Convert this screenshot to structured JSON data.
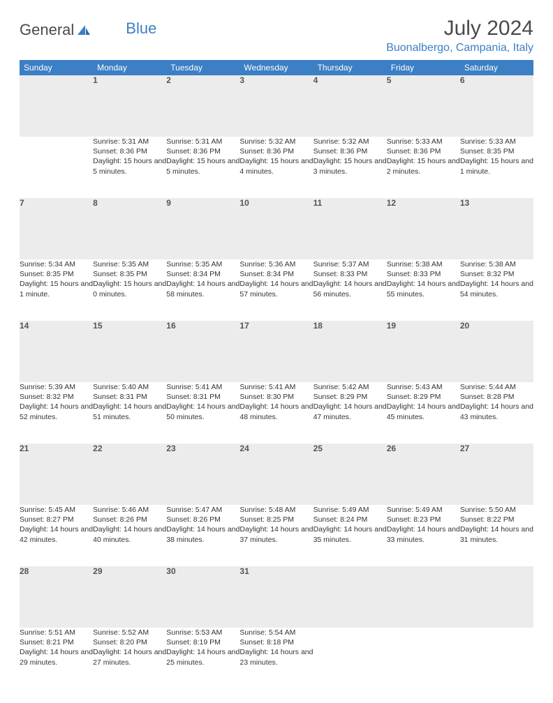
{
  "logo": {
    "text1": "General",
    "text2": "Blue"
  },
  "title": "July 2024",
  "location": "Buonalbergo, Campania, Italy",
  "colors": {
    "header_bg": "#3b7fc4",
    "header_text": "#ffffff",
    "daynum_bg": "#ececec",
    "border": "#3b7fc4",
    "title_text": "#4a4a4a",
    "location_text": "#3b7fc4"
  },
  "day_headers": [
    "Sunday",
    "Monday",
    "Tuesday",
    "Wednesday",
    "Thursday",
    "Friday",
    "Saturday"
  ],
  "weeks": [
    [
      null,
      {
        "n": "1",
        "sr": "5:31 AM",
        "ss": "8:36 PM",
        "dl": "15 hours and 5 minutes."
      },
      {
        "n": "2",
        "sr": "5:31 AM",
        "ss": "8:36 PM",
        "dl": "15 hours and 5 minutes."
      },
      {
        "n": "3",
        "sr": "5:32 AM",
        "ss": "8:36 PM",
        "dl": "15 hours and 4 minutes."
      },
      {
        "n": "4",
        "sr": "5:32 AM",
        "ss": "8:36 PM",
        "dl": "15 hours and 3 minutes."
      },
      {
        "n": "5",
        "sr": "5:33 AM",
        "ss": "8:36 PM",
        "dl": "15 hours and 2 minutes."
      },
      {
        "n": "6",
        "sr": "5:33 AM",
        "ss": "8:35 PM",
        "dl": "15 hours and 1 minute."
      }
    ],
    [
      {
        "n": "7",
        "sr": "5:34 AM",
        "ss": "8:35 PM",
        "dl": "15 hours and 1 minute."
      },
      {
        "n": "8",
        "sr": "5:35 AM",
        "ss": "8:35 PM",
        "dl": "15 hours and 0 minutes."
      },
      {
        "n": "9",
        "sr": "5:35 AM",
        "ss": "8:34 PM",
        "dl": "14 hours and 58 minutes."
      },
      {
        "n": "10",
        "sr": "5:36 AM",
        "ss": "8:34 PM",
        "dl": "14 hours and 57 minutes."
      },
      {
        "n": "11",
        "sr": "5:37 AM",
        "ss": "8:33 PM",
        "dl": "14 hours and 56 minutes."
      },
      {
        "n": "12",
        "sr": "5:38 AM",
        "ss": "8:33 PM",
        "dl": "14 hours and 55 minutes."
      },
      {
        "n": "13",
        "sr": "5:38 AM",
        "ss": "8:32 PM",
        "dl": "14 hours and 54 minutes."
      }
    ],
    [
      {
        "n": "14",
        "sr": "5:39 AM",
        "ss": "8:32 PM",
        "dl": "14 hours and 52 minutes."
      },
      {
        "n": "15",
        "sr": "5:40 AM",
        "ss": "8:31 PM",
        "dl": "14 hours and 51 minutes."
      },
      {
        "n": "16",
        "sr": "5:41 AM",
        "ss": "8:31 PM",
        "dl": "14 hours and 50 minutes."
      },
      {
        "n": "17",
        "sr": "5:41 AM",
        "ss": "8:30 PM",
        "dl": "14 hours and 48 minutes."
      },
      {
        "n": "18",
        "sr": "5:42 AM",
        "ss": "8:29 PM",
        "dl": "14 hours and 47 minutes."
      },
      {
        "n": "19",
        "sr": "5:43 AM",
        "ss": "8:29 PM",
        "dl": "14 hours and 45 minutes."
      },
      {
        "n": "20",
        "sr": "5:44 AM",
        "ss": "8:28 PM",
        "dl": "14 hours and 43 minutes."
      }
    ],
    [
      {
        "n": "21",
        "sr": "5:45 AM",
        "ss": "8:27 PM",
        "dl": "14 hours and 42 minutes."
      },
      {
        "n": "22",
        "sr": "5:46 AM",
        "ss": "8:26 PM",
        "dl": "14 hours and 40 minutes."
      },
      {
        "n": "23",
        "sr": "5:47 AM",
        "ss": "8:26 PM",
        "dl": "14 hours and 38 minutes."
      },
      {
        "n": "24",
        "sr": "5:48 AM",
        "ss": "8:25 PM",
        "dl": "14 hours and 37 minutes."
      },
      {
        "n": "25",
        "sr": "5:49 AM",
        "ss": "8:24 PM",
        "dl": "14 hours and 35 minutes."
      },
      {
        "n": "26",
        "sr": "5:49 AM",
        "ss": "8:23 PM",
        "dl": "14 hours and 33 minutes."
      },
      {
        "n": "27",
        "sr": "5:50 AM",
        "ss": "8:22 PM",
        "dl": "14 hours and 31 minutes."
      }
    ],
    [
      {
        "n": "28",
        "sr": "5:51 AM",
        "ss": "8:21 PM",
        "dl": "14 hours and 29 minutes."
      },
      {
        "n": "29",
        "sr": "5:52 AM",
        "ss": "8:20 PM",
        "dl": "14 hours and 27 minutes."
      },
      {
        "n": "30",
        "sr": "5:53 AM",
        "ss": "8:19 PM",
        "dl": "14 hours and 25 minutes."
      },
      {
        "n": "31",
        "sr": "5:54 AM",
        "ss": "8:18 PM",
        "dl": "14 hours and 23 minutes."
      },
      null,
      null,
      null
    ]
  ],
  "labels": {
    "sunrise": "Sunrise:",
    "sunset": "Sunset:",
    "daylight": "Daylight:"
  }
}
